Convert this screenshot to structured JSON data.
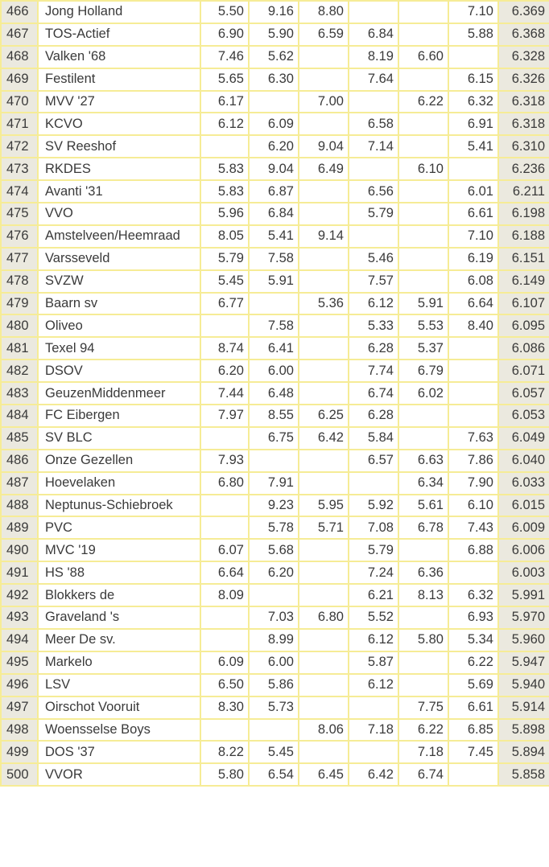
{
  "table": {
    "rows": [
      [
        "466",
        "Jong Holland",
        "5.50",
        "9.16",
        "8.80",
        null,
        null,
        "7.10",
        "6.369"
      ],
      [
        "467",
        "TOS-Actief",
        "6.90",
        "5.90",
        "6.59",
        "6.84",
        null,
        "5.88",
        "6.368"
      ],
      [
        "468",
        "Valken '68",
        "7.46",
        "5.62",
        null,
        "8.19",
        "6.60",
        null,
        "6.328"
      ],
      [
        "469",
        "Festilent",
        "5.65",
        "6.30",
        null,
        "7.64",
        null,
        "6.15",
        "6.326"
      ],
      [
        "470",
        "MVV '27",
        "6.17",
        null,
        "7.00",
        null,
        "6.22",
        "6.32",
        "6.318"
      ],
      [
        "471",
        "KCVO",
        "6.12",
        "6.09",
        null,
        "6.58",
        null,
        "6.91",
        "6.318"
      ],
      [
        "472",
        "SV Reeshof",
        null,
        "6.20",
        "9.04",
        "7.14",
        null,
        "5.41",
        "6.310"
      ],
      [
        "473",
        "RKDES",
        "5.83",
        "9.04",
        "6.49",
        null,
        "6.10",
        null,
        "6.236"
      ],
      [
        "474",
        "Avanti '31",
        "5.83",
        "6.87",
        null,
        "6.56",
        null,
        "6.01",
        "6.211"
      ],
      [
        "475",
        "VVO",
        "5.96",
        "6.84",
        null,
        "5.79",
        null,
        "6.61",
        "6.198"
      ],
      [
        "476",
        "Amstelveen/Heemraad",
        "8.05",
        "5.41",
        "9.14",
        null,
        null,
        "7.10",
        "6.188"
      ],
      [
        "477",
        "Varsseveld",
        "5.79",
        "7.58",
        null,
        "5.46",
        null,
        "6.19",
        "6.151"
      ],
      [
        "478",
        "SVZW",
        "5.45",
        "5.91",
        null,
        "7.57",
        null,
        "6.08",
        "6.149"
      ],
      [
        "479",
        "Baarn sv",
        "6.77",
        null,
        "5.36",
        "6.12",
        "5.91",
        "6.64",
        "6.107"
      ],
      [
        "480",
        "Oliveo",
        null,
        "7.58",
        null,
        "5.33",
        "5.53",
        "8.40",
        "6.095"
      ],
      [
        "481",
        "Texel 94",
        "8.74",
        "6.41",
        null,
        "6.28",
        "5.37",
        null,
        "6.086"
      ],
      [
        "482",
        "DSOV",
        "6.20",
        "6.00",
        null,
        "7.74",
        "6.79",
        null,
        "6.071"
      ],
      [
        "483",
        "GeuzenMiddenmeer",
        "7.44",
        "6.48",
        null,
        "6.74",
        "6.02",
        null,
        "6.057"
      ],
      [
        "484",
        "FC Eibergen",
        "7.97",
        "8.55",
        "6.25",
        "6.28",
        null,
        null,
        "6.053"
      ],
      [
        "485",
        "SV BLC",
        null,
        "6.75",
        "6.42",
        "5.84",
        null,
        "7.63",
        "6.049"
      ],
      [
        "486",
        "Onze Gezellen",
        "7.93",
        null,
        null,
        "6.57",
        "6.63",
        "7.86",
        "6.040"
      ],
      [
        "487",
        "Hoevelaken",
        "6.80",
        "7.91",
        null,
        null,
        "6.34",
        "7.90",
        "6.033"
      ],
      [
        "488",
        "Neptunus-Schiebroek",
        null,
        "9.23",
        "5.95",
        "5.92",
        "5.61",
        "6.10",
        "6.015"
      ],
      [
        "489",
        "PVC",
        null,
        "5.78",
        "5.71",
        "7.08",
        "6.78",
        "7.43",
        "6.009"
      ],
      [
        "490",
        "MVC '19",
        "6.07",
        "5.68",
        null,
        "5.79",
        null,
        "6.88",
        "6.006"
      ],
      [
        "491",
        "HS '88",
        "6.64",
        "6.20",
        null,
        "7.24",
        "6.36",
        null,
        "6.003"
      ],
      [
        "492",
        "Blokkers de",
        "8.09",
        null,
        null,
        "6.21",
        "8.13",
        "6.32",
        "5.991"
      ],
      [
        "493",
        "Graveland 's",
        null,
        "7.03",
        "6.80",
        "5.52",
        null,
        "6.93",
        "5.970"
      ],
      [
        "494",
        "Meer De sv.",
        null,
        "8.99",
        null,
        "6.12",
        "5.80",
        "5.34",
        "5.960"
      ],
      [
        "495",
        "Markelo",
        "6.09",
        "6.00",
        null,
        "5.87",
        null,
        "6.22",
        "5.947"
      ],
      [
        "496",
        "LSV",
        "6.50",
        "5.86",
        null,
        "6.12",
        null,
        "5.69",
        "5.940"
      ],
      [
        "497",
        "Oirschot Vooruit",
        "8.30",
        "5.73",
        null,
        null,
        "7.75",
        "6.61",
        "5.914"
      ],
      [
        "498",
        "Woensselse Boys",
        null,
        null,
        "8.06",
        "7.18",
        "6.22",
        "6.85",
        "5.898"
      ],
      [
        "499",
        "DOS '37",
        "8.22",
        "5.45",
        null,
        null,
        "7.18",
        "7.45",
        "5.894"
      ],
      [
        "500",
        "VVOR",
        "5.80",
        "6.54",
        "6.45",
        "6.42",
        "6.74",
        null,
        "5.858"
      ]
    ]
  }
}
